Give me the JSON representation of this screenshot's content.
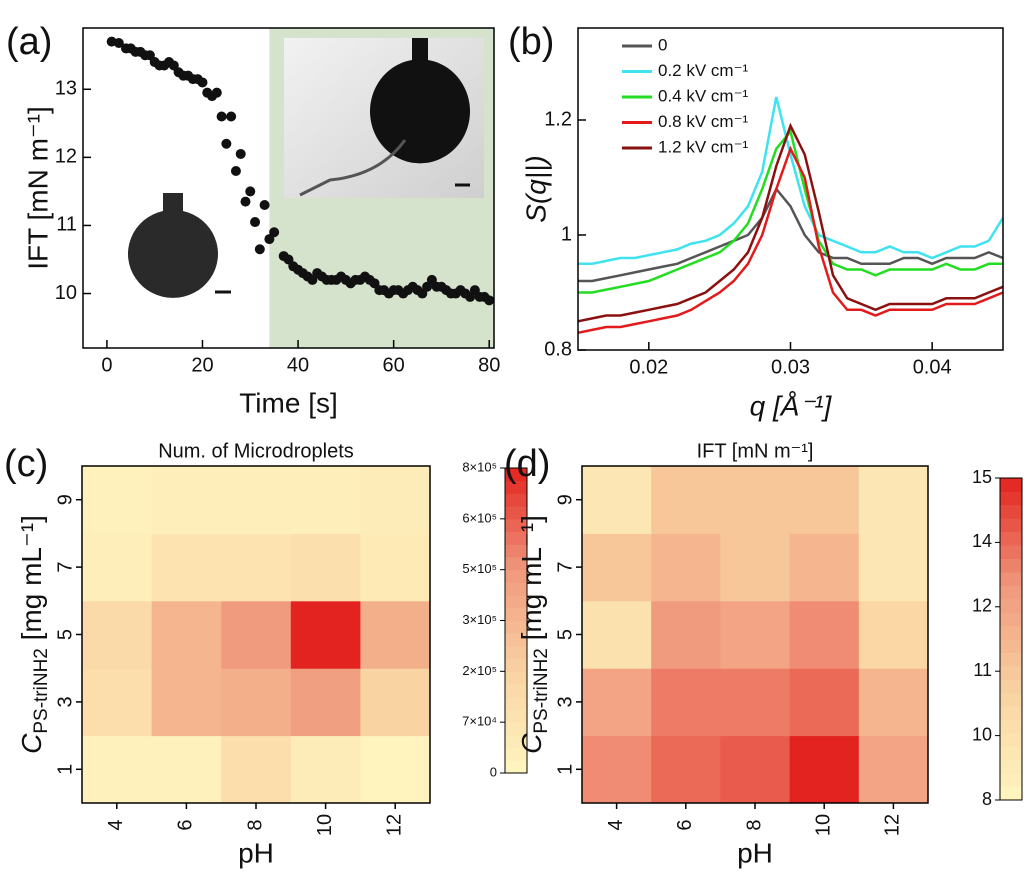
{
  "chart_data": [
    {
      "type": "scatter",
      "panel_label": "(a)",
      "xlabel": "Time [s]",
      "ylabel": "IFT [mN m⁻¹]",
      "xlim": [
        -5,
        81
      ],
      "ylim": [
        9.2,
        13.9
      ],
      "xticks": [
        0,
        20,
        40,
        60,
        80
      ],
      "yticks": [
        10,
        11,
        12,
        13
      ],
      "shade_from": 34,
      "shade_color": "#d5e2cc",
      "color": "#111111",
      "x": [
        1,
        2.5,
        4,
        5,
        6,
        7,
        8,
        9,
        10,
        11,
        12,
        13,
        14,
        15,
        16,
        17,
        18,
        19,
        20,
        21,
        22,
        23,
        24,
        25,
        26,
        27,
        28,
        29,
        30,
        31,
        32,
        33,
        34,
        35,
        37,
        38,
        39,
        40,
        41,
        42,
        43,
        44,
        45,
        46,
        47,
        48,
        49,
        50,
        51,
        52,
        53,
        54,
        55,
        56,
        57,
        58,
        59,
        60,
        61,
        62,
        63,
        64,
        65,
        66,
        67,
        68,
        69,
        70,
        71,
        72,
        73,
        74,
        75,
        76,
        77,
        78,
        79,
        80
      ],
      "values": [
        13.7,
        13.68,
        13.6,
        13.6,
        13.55,
        13.55,
        13.5,
        13.5,
        13.4,
        13.35,
        13.35,
        13.4,
        13.35,
        13.25,
        13.2,
        13.2,
        13.15,
        13.15,
        13.1,
        12.95,
        12.9,
        12.95,
        12.6,
        12.2,
        12.6,
        11.8,
        12.05,
        11.35,
        11.5,
        11.05,
        10.65,
        11.3,
        10.8,
        10.9,
        10.55,
        10.5,
        10.4,
        10.35,
        10.3,
        10.25,
        10.2,
        10.3,
        10.25,
        10.2,
        10.2,
        10.2,
        10.25,
        10.2,
        10.15,
        10.2,
        10.2,
        10.25,
        10.2,
        10.15,
        10.05,
        10.05,
        10.0,
        10.05,
        10.05,
        10.0,
        10.05,
        10.1,
        10.05,
        10.0,
        10.1,
        10.2,
        10.1,
        10.1,
        10.05,
        10.0,
        10.0,
        10.05,
        10.0,
        9.95,
        10.05,
        9.95,
        9.95,
        9.9
      ]
    },
    {
      "type": "line",
      "panel_label": "(b)",
      "xlabel": "q [Å⁻¹]",
      "ylabel": "S(q||)",
      "xlim": [
        0.015,
        0.045
      ],
      "ylim": [
        0.8,
        1.36
      ],
      "xticks": [
        0.02,
        0.03,
        0.04
      ],
      "yticks": [
        0.8,
        1,
        1.2
      ],
      "x": [
        0.015,
        0.016,
        0.017,
        0.018,
        0.019,
        0.02,
        0.021,
        0.022,
        0.023,
        0.024,
        0.025,
        0.026,
        0.027,
        0.028,
        0.029,
        0.03,
        0.031,
        0.032,
        0.033,
        0.034,
        0.035,
        0.036,
        0.037,
        0.038,
        0.039,
        0.04,
        0.041,
        0.042,
        0.043,
        0.044,
        0.045
      ],
      "series": [
        {
          "name": "0",
          "color": "#555555",
          "values": [
            0.92,
            0.92,
            0.925,
            0.93,
            0.935,
            0.94,
            0.945,
            0.95,
            0.96,
            0.97,
            0.98,
            0.99,
            1.0,
            1.03,
            1.08,
            1.05,
            1.0,
            0.97,
            0.96,
            0.96,
            0.95,
            0.95,
            0.95,
            0.96,
            0.96,
            0.95,
            0.96,
            0.96,
            0.96,
            0.97,
            0.96
          ]
        },
        {
          "name": "0.2 kV cm⁻¹",
          "color": "#3fe3f0",
          "values": [
            0.95,
            0.95,
            0.955,
            0.96,
            0.96,
            0.965,
            0.97,
            0.975,
            0.985,
            0.99,
            1.0,
            1.02,
            1.05,
            1.11,
            1.24,
            1.14,
            1.05,
            1.0,
            0.99,
            0.98,
            0.97,
            0.97,
            0.98,
            0.97,
            0.97,
            0.96,
            0.97,
            0.98,
            0.98,
            0.99,
            1.03
          ]
        },
        {
          "name": "0.4 kV cm⁻¹",
          "color": "#22dd22",
          "values": [
            0.9,
            0.9,
            0.905,
            0.91,
            0.915,
            0.92,
            0.93,
            0.94,
            0.95,
            0.96,
            0.97,
            0.99,
            1.02,
            1.08,
            1.15,
            1.18,
            1.08,
            0.99,
            0.95,
            0.94,
            0.94,
            0.93,
            0.94,
            0.94,
            0.94,
            0.94,
            0.95,
            0.94,
            0.94,
            0.95,
            0.95
          ]
        },
        {
          "name": "0.8 kV cm⁻¹",
          "color": "#e31a1c",
          "values": [
            0.83,
            0.835,
            0.84,
            0.84,
            0.845,
            0.85,
            0.855,
            0.86,
            0.87,
            0.885,
            0.9,
            0.92,
            0.95,
            1.0,
            1.08,
            1.15,
            1.1,
            0.98,
            0.9,
            0.87,
            0.87,
            0.86,
            0.87,
            0.87,
            0.87,
            0.87,
            0.88,
            0.88,
            0.88,
            0.89,
            0.9
          ]
        },
        {
          "name": "1.2 kV cm⁻¹",
          "color": "#8b1010",
          "values": [
            0.85,
            0.855,
            0.86,
            0.86,
            0.865,
            0.87,
            0.875,
            0.88,
            0.89,
            0.9,
            0.92,
            0.94,
            0.97,
            1.03,
            1.12,
            1.19,
            1.14,
            1.04,
            0.93,
            0.89,
            0.88,
            0.87,
            0.88,
            0.88,
            0.88,
            0.88,
            0.89,
            0.89,
            0.89,
            0.9,
            0.91
          ]
        }
      ]
    },
    {
      "type": "heatmap",
      "panel_label": "(c)",
      "title": "Num. of Microdroplets",
      "xlabel": "pH",
      "ylabel": {
        "symbol": "C",
        "subscript": "PS-triNH2",
        "unit": " [mg mL⁻¹]"
      },
      "categories": [
        "4",
        "6",
        "8",
        "10",
        "12"
      ],
      "rows": [
        "1",
        "3",
        "5",
        "7",
        "9"
      ],
      "values": [
        [
          20000,
          20000,
          120000,
          40000,
          10000
        ],
        [
          120000,
          300000,
          350000,
          450000,
          200000
        ],
        [
          150000,
          300000,
          480000,
          800000,
          350000
        ],
        [
          30000,
          80000,
          80000,
          100000,
          50000
        ],
        [
          20000,
          30000,
          30000,
          30000,
          40000
        ]
      ],
      "colorscale": [
        "#fff6c0",
        "#f9d3a2",
        "#f0987c",
        "#e2231f"
      ],
      "cticks": [
        0,
        {
          "value": 70000,
          "label": "7×10⁴"
        },
        {
          "value": 200000,
          "label": "2×10⁵"
        },
        {
          "value": 300000,
          "label": "3×10⁵"
        },
        {
          "value": 500000,
          "label": "5×10⁵"
        },
        {
          "value": 600000,
          "label": "6×10⁵"
        },
        {
          "value": 800000,
          "label": "8×10⁵"
        }
      ]
    },
    {
      "type": "heatmap",
      "panel_label": "(d)",
      "title": "IFT [mN m⁻¹]",
      "xlabel": "pH",
      "ylabel": {
        "symbol": "C",
        "subscript": "PS-triNH2",
        "unit": " [mg mL⁻¹]"
      },
      "categories": [
        "4",
        "6",
        "8",
        "10",
        "12"
      ],
      "rows": [
        "1",
        "3",
        "5",
        "7",
        "9"
      ],
      "values": [
        [
          13,
          14,
          14.2,
          15,
          12
        ],
        [
          12,
          13.5,
          13.5,
          14,
          11.5
        ],
        [
          10,
          12.5,
          12,
          13,
          10.5
        ],
        [
          11,
          11.5,
          11,
          11.5,
          9.5
        ],
        [
          9.5,
          11,
          11,
          11,
          9.5
        ]
      ],
      "colorscale": [
        "#fff6c0",
        "#f9d3a2",
        "#f0987c",
        "#e2231f"
      ],
      "cticks": [
        8,
        10,
        11,
        12,
        14,
        15
      ]
    }
  ]
}
